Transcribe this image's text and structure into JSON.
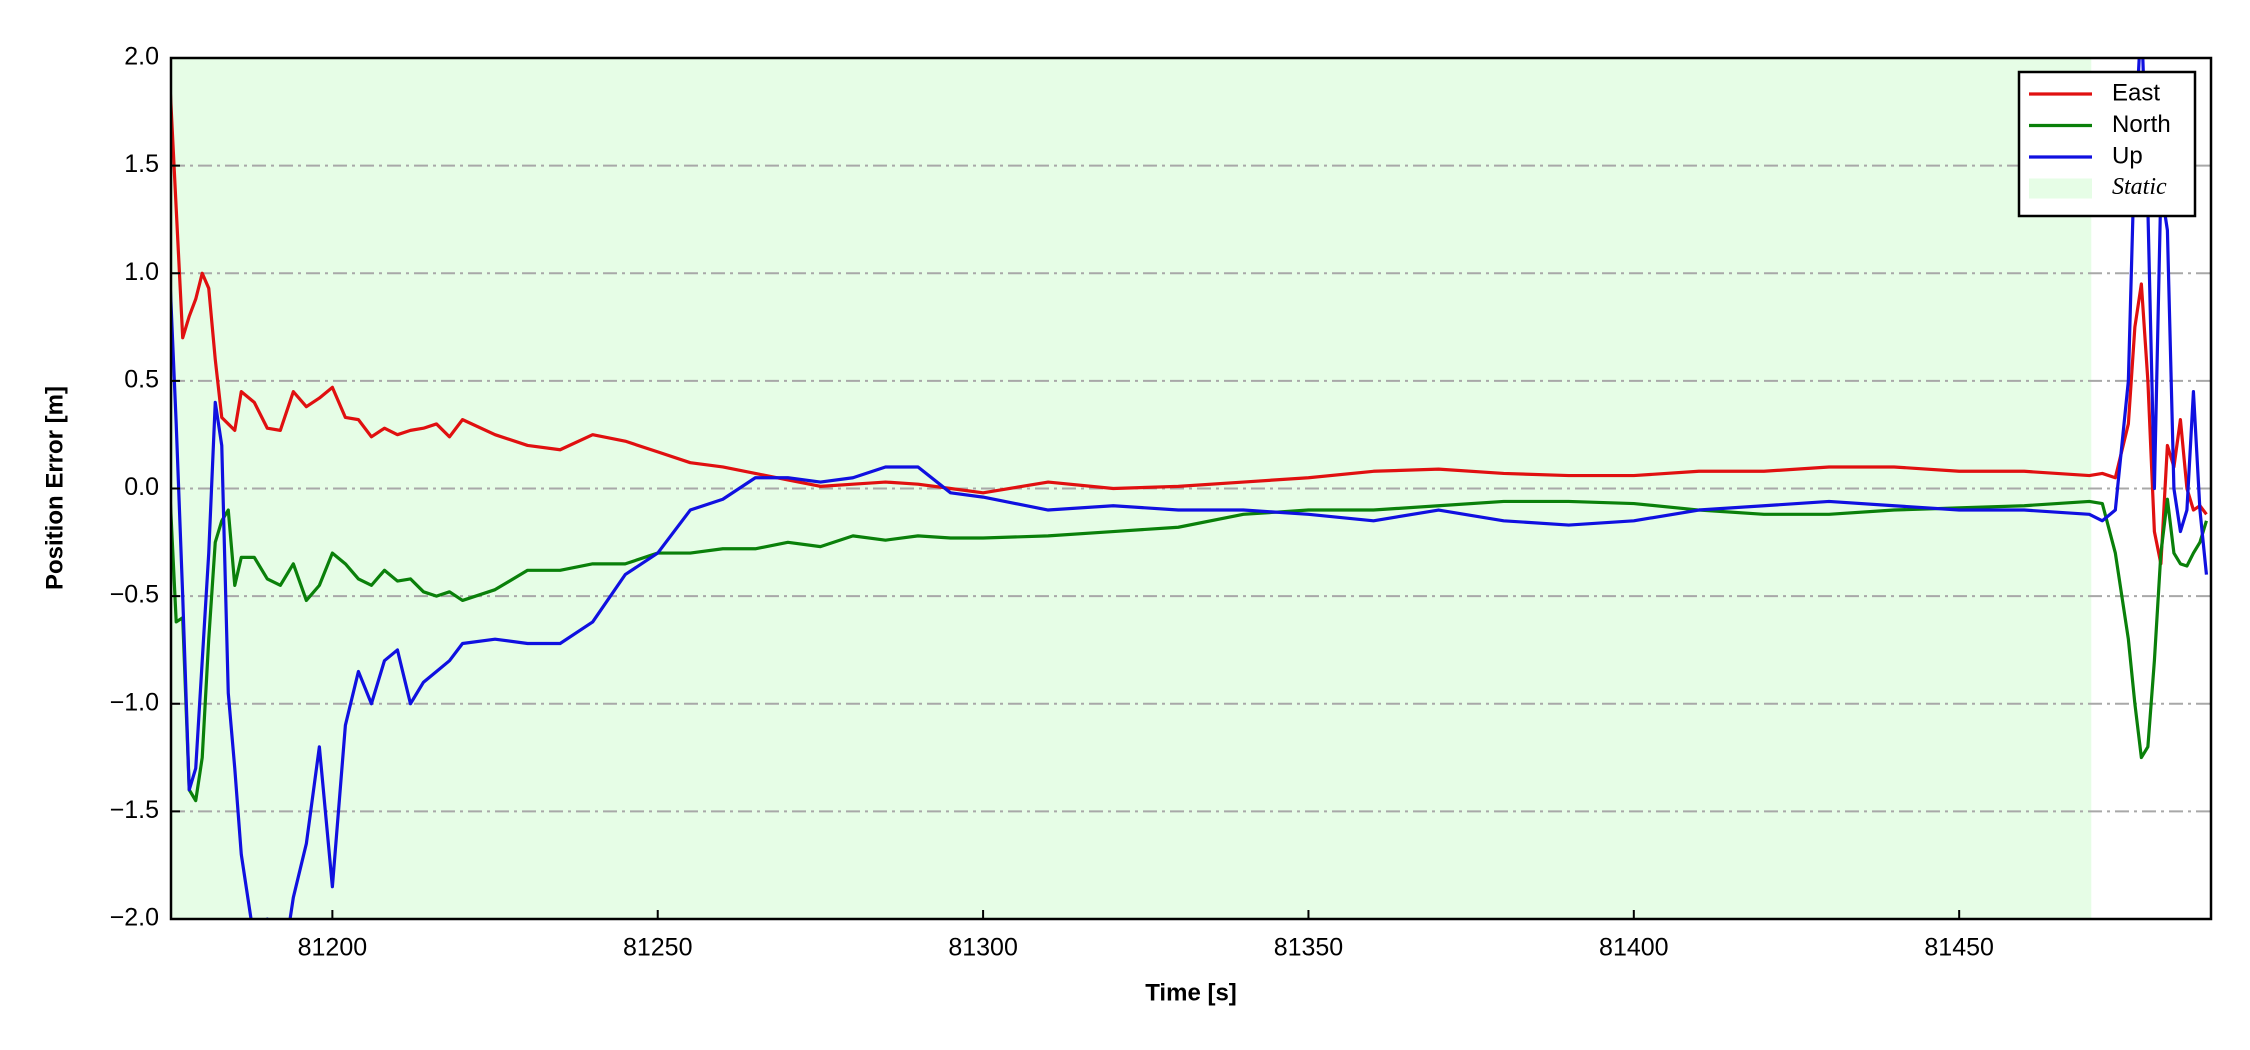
{
  "chart_data": {
    "type": "line",
    "xlabel": "Time [s]",
    "ylabel": "Position Error [m]",
    "x": [
      81175,
      81176,
      81177,
      81178,
      81179,
      81180,
      81181,
      81182,
      81183,
      81184,
      81185,
      81186,
      81188,
      81190,
      81192,
      81194,
      81196,
      81198,
      81200,
      81202,
      81204,
      81206,
      81208,
      81210,
      81212,
      81214,
      81216,
      81218,
      81220,
      81225,
      81230,
      81235,
      81240,
      81245,
      81250,
      81255,
      81260,
      81265,
      81270,
      81275,
      81280,
      81285,
      81290,
      81295,
      81300,
      81310,
      81320,
      81330,
      81340,
      81350,
      81360,
      81370,
      81380,
      81390,
      81400,
      81410,
      81420,
      81430,
      81440,
      81450,
      81460,
      81470,
      81472,
      81474,
      81476,
      81477,
      81478,
      81479,
      81480,
      81481,
      81482,
      81483,
      81484,
      81485,
      81486,
      81487,
      81488
    ],
    "series": [
      {
        "name": "East",
        "color": "#e01010",
        "values": [
          1.9,
          1.3,
          0.7,
          0.8,
          0.88,
          1.0,
          0.93,
          0.6,
          0.33,
          0.3,
          0.27,
          0.45,
          0.4,
          0.28,
          0.27,
          0.45,
          0.38,
          0.42,
          0.47,
          0.33,
          0.32,
          0.24,
          0.28,
          0.25,
          0.27,
          0.28,
          0.3,
          0.24,
          0.32,
          0.25,
          0.2,
          0.18,
          0.25,
          0.22,
          0.17,
          0.12,
          0.1,
          0.07,
          0.04,
          0.01,
          0.02,
          0.03,
          0.02,
          0.0,
          -0.02,
          0.03,
          0.0,
          0.01,
          0.03,
          0.05,
          0.08,
          0.09,
          0.07,
          0.06,
          0.06,
          0.08,
          0.08,
          0.1,
          0.1,
          0.08,
          0.08,
          0.06,
          0.07,
          0.05,
          0.3,
          0.75,
          0.95,
          0.5,
          -0.2,
          -0.35,
          0.2,
          0.1,
          0.32,
          0.0,
          -0.1,
          -0.08,
          -0.12
        ]
      },
      {
        "name": "North",
        "color": "#0a800a",
        "values": [
          0.0,
          -0.62,
          -0.6,
          -1.4,
          -1.45,
          -1.25,
          -0.7,
          -0.25,
          -0.15,
          -0.1,
          -0.45,
          -0.32,
          -0.32,
          -0.42,
          -0.45,
          -0.35,
          -0.52,
          -0.45,
          -0.3,
          -0.35,
          -0.42,
          -0.45,
          -0.38,
          -0.43,
          -0.42,
          -0.48,
          -0.5,
          -0.48,
          -0.52,
          -0.47,
          -0.38,
          -0.38,
          -0.35,
          -0.35,
          -0.3,
          -0.3,
          -0.28,
          -0.28,
          -0.25,
          -0.27,
          -0.22,
          -0.24,
          -0.22,
          -0.23,
          -0.23,
          -0.22,
          -0.2,
          -0.18,
          -0.12,
          -0.1,
          -0.1,
          -0.08,
          -0.06,
          -0.06,
          -0.07,
          -0.1,
          -0.12,
          -0.12,
          -0.1,
          -0.09,
          -0.08,
          -0.06,
          -0.07,
          -0.3,
          -0.7,
          -1.0,
          -1.25,
          -1.2,
          -0.8,
          -0.3,
          -0.05,
          -0.3,
          -0.35,
          -0.36,
          -0.3,
          -0.25,
          -0.15
        ]
      },
      {
        "name": "Up",
        "color": "#1010e0",
        "values": [
          1.0,
          0.3,
          -0.5,
          -1.4,
          -1.3,
          -0.8,
          -0.3,
          0.4,
          0.2,
          -0.95,
          -1.3,
          -1.7,
          -2.1,
          -2.0,
          -2.3,
          -1.9,
          -1.65,
          -1.2,
          -1.85,
          -1.1,
          -0.85,
          -1.0,
          -0.8,
          -0.75,
          -1.0,
          -0.9,
          -0.85,
          -0.8,
          -0.72,
          -0.7,
          -0.72,
          -0.72,
          -0.62,
          -0.4,
          -0.3,
          -0.1,
          -0.05,
          0.05,
          0.05,
          0.03,
          0.05,
          0.1,
          0.1,
          -0.02,
          -0.04,
          -0.1,
          -0.08,
          -0.1,
          -0.1,
          -0.12,
          -0.15,
          -0.1,
          -0.15,
          -0.17,
          -0.15,
          -0.1,
          -0.08,
          -0.06,
          -0.08,
          -0.1,
          -0.1,
          -0.12,
          -0.15,
          -0.1,
          0.5,
          1.6,
          2.2,
          1.3,
          0.0,
          1.4,
          1.2,
          0.0,
          -0.2,
          -0.1,
          0.45,
          -0.1,
          -0.4
        ]
      }
    ],
    "spans": [
      {
        "name": "Static",
        "x0": 81175.2,
        "x1": 81470.3,
        "color": "#e6fde6"
      }
    ],
    "xlim": [
      81175.2,
      81488.7
    ],
    "ylim": [
      -2,
      2
    ],
    "xticks": [
      81200,
      81250,
      81300,
      81350,
      81400,
      81450
    ],
    "yticks": [
      {
        "value": -2,
        "label": "−2.0"
      },
      {
        "value": -1.5,
        "label": "−1.5"
      },
      {
        "value": -1,
        "label": "−1.0"
      },
      {
        "value": -0.5,
        "label": "−0.5"
      },
      {
        "value": 0,
        "label": "0.0"
      },
      {
        "value": 0.5,
        "label": "0.5"
      },
      {
        "value": 1,
        "label": "1.0"
      },
      {
        "value": 1.5,
        "label": "1.5"
      },
      {
        "value": 2,
        "label": "2.0"
      }
    ],
    "grid": true,
    "legend": "upper right"
  }
}
